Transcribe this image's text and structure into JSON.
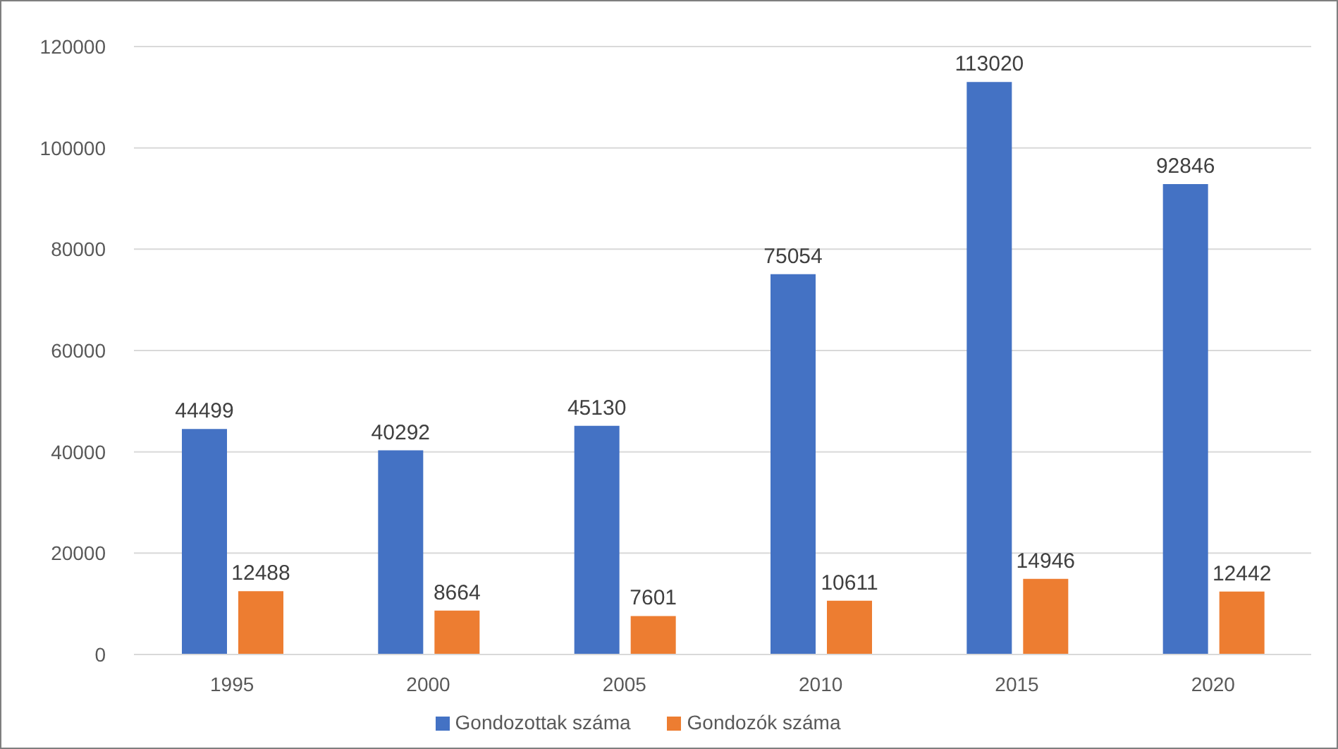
{
  "chart_data": {
    "type": "bar",
    "categories": [
      "1995",
      "2000",
      "2005",
      "2010",
      "2015",
      "2020"
    ],
    "series": [
      {
        "name": "Gondozottak száma",
        "color": "#4472c4",
        "values": [
          44499,
          40292,
          45130,
          75054,
          113020,
          92846
        ]
      },
      {
        "name": "Gondozók száma",
        "color": "#ed7d31",
        "values": [
          12488,
          8664,
          7601,
          10611,
          14946,
          12442
        ]
      }
    ],
    "ylim": [
      0,
      120000
    ],
    "yticks": [
      0,
      20000,
      40000,
      60000,
      80000,
      100000,
      120000
    ],
    "grid": "y",
    "legend": "bottom",
    "data_labels": true
  }
}
